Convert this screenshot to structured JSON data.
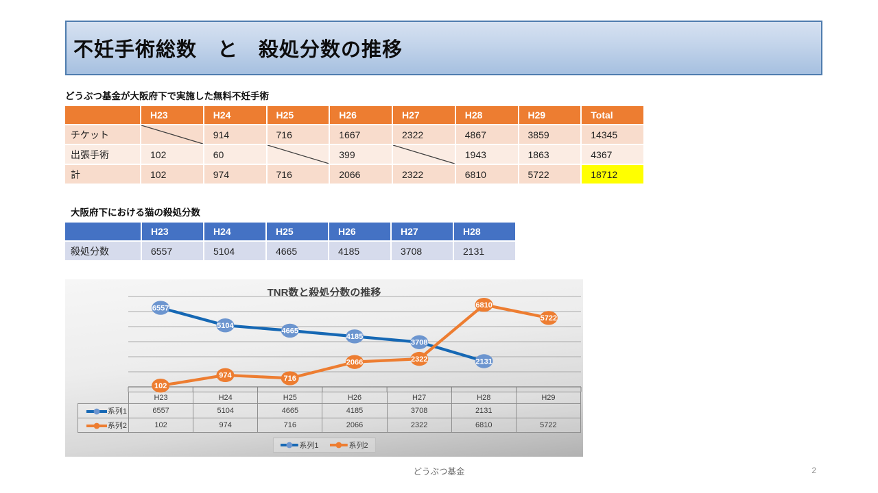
{
  "title": "不妊手術総数　と　殺処分数の推移",
  "colors": {
    "accent_orange": "#ED7D31",
    "accent_blue": "#4472C4",
    "highlight_yellow": "#FFFF00",
    "title_banner_border": "#4E7CAE"
  },
  "table1": {
    "caption": "どうぶつ基金が大阪府下で実施した無料不妊手術",
    "columns": [
      "",
      "H23",
      "H24",
      "H25",
      "H26",
      "H27",
      "H28",
      "H29",
      "Total"
    ],
    "rows": [
      {
        "label": "チケット",
        "cells": [
          "",
          "914",
          "716",
          "1667",
          "2322",
          "4867",
          "3859",
          "14345"
        ]
      },
      {
        "label": "出張手術",
        "cells": [
          "102",
          "60",
          "",
          "399",
          "",
          "1943",
          "1863",
          "4367"
        ]
      },
      {
        "label": "計",
        "cells": [
          "102",
          "974",
          "716",
          "2066",
          "2322",
          "6810",
          "5722",
          "18712"
        ]
      }
    ]
  },
  "table2": {
    "caption": "大阪府下における猫の殺処分数",
    "columns": [
      "",
      "H23",
      "H24",
      "H25",
      "H26",
      "H27",
      "H28"
    ],
    "rows": [
      {
        "label": "殺処分数",
        "cells": [
          "6557",
          "5104",
          "4665",
          "4185",
          "3708",
          "2131"
        ]
      }
    ]
  },
  "chart_data": {
    "type": "line",
    "title": "TNR数と殺処分数の推移",
    "categories": [
      "H23",
      "H24",
      "H25",
      "H26",
      "H27",
      "H28",
      "H29"
    ],
    "series": [
      {
        "name": "系列1",
        "line_color": "#1668B4",
        "marker_color": "#6C95CF",
        "values": [
          6557,
          5104,
          4665,
          4185,
          3708,
          2131,
          null
        ]
      },
      {
        "name": "系列2",
        "line_color": "#ED7D31",
        "marker_color": "#ED7D31",
        "values": [
          102,
          974,
          716,
          2066,
          2322,
          6810,
          5722
        ]
      }
    ],
    "ylim": [
      0,
      7500
    ],
    "gridline_step": 1250,
    "grid": true,
    "legend_position": "bottom",
    "data_table_shown": true
  },
  "footer": {
    "text": "どうぶつ基金",
    "page": "2"
  }
}
